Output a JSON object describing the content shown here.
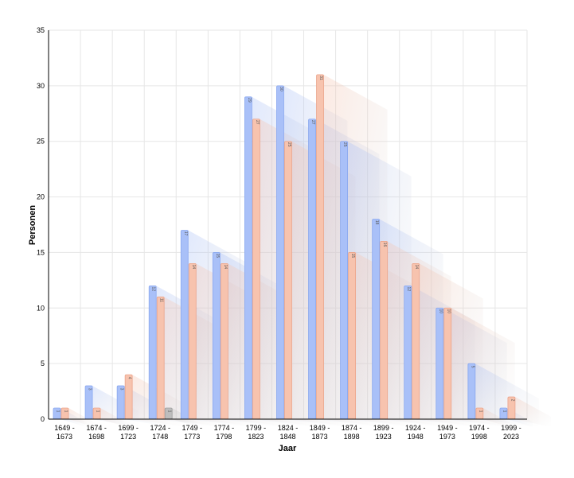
{
  "chart_data": {
    "type": "bar",
    "xlabel": "Jaar",
    "ylabel": "Personen",
    "ylim": [
      0,
      35
    ],
    "yticks": [
      0,
      5,
      10,
      15,
      20,
      25,
      30,
      35
    ],
    "grid": true,
    "categories": [
      [
        "1649 -",
        "1673"
      ],
      [
        "1674 -",
        "1698"
      ],
      [
        "1699 -",
        "1723"
      ],
      [
        "1724 -",
        "1748"
      ],
      [
        "1749 -",
        "1773"
      ],
      [
        "1774 -",
        "1798"
      ],
      [
        "1799 -",
        "1823"
      ],
      [
        "1824 -",
        "1848"
      ],
      [
        "1849 -",
        "1873"
      ],
      [
        "1874 -",
        "1898"
      ],
      [
        "1899 -",
        "1923"
      ],
      [
        "1924 -",
        "1948"
      ],
      [
        "1949 -",
        "1973"
      ],
      [
        "1974 -",
        "1998"
      ],
      [
        "1999 -",
        "2023"
      ]
    ],
    "series": [
      {
        "color": "#a9c0f8",
        "stroke": "#8aa8ef",
        "values": [
          1,
          3,
          3,
          12,
          17,
          15,
          29,
          30,
          27,
          25,
          18,
          12,
          10,
          5,
          1
        ]
      },
      {
        "color": "#f7c3ae",
        "stroke": "#eba48a",
        "values": [
          1,
          1,
          4,
          11,
          14,
          14,
          27,
          25,
          31,
          15,
          16,
          14,
          10,
          1,
          2
        ]
      },
      {
        "color": "#bdbdbd",
        "stroke": "#9e9e9e",
        "values": [
          0,
          0,
          0,
          1,
          0,
          0,
          0,
          0,
          0,
          0,
          0,
          0,
          0,
          0,
          0
        ]
      }
    ]
  }
}
